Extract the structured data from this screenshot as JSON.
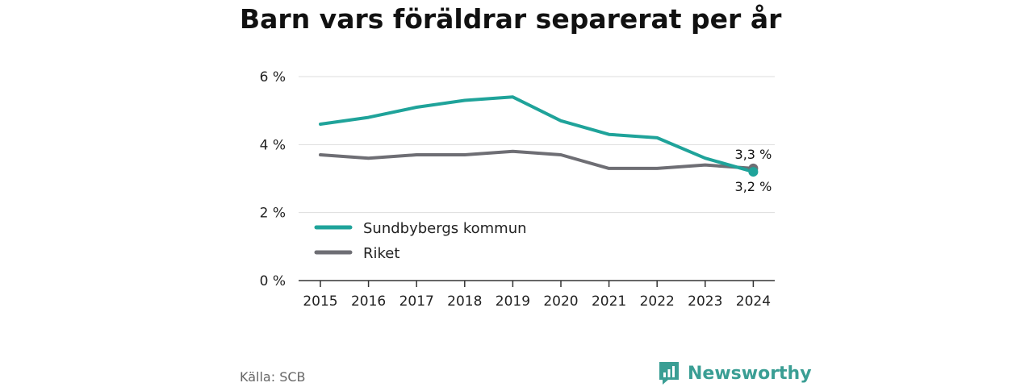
{
  "chart_data": {
    "type": "line",
    "title": "Barn vars föräldrar separerat per år",
    "x": [
      "2015",
      "2016",
      "2017",
      "2018",
      "2019",
      "2020",
      "2021",
      "2022",
      "2023",
      "2024"
    ],
    "ylim": [
      0,
      6
    ],
    "yticks": [
      {
        "value": 0,
        "label": "0 %"
      },
      {
        "value": 2,
        "label": "2 %"
      },
      {
        "value": 4,
        "label": "4 %"
      },
      {
        "value": 6,
        "label": "6 %"
      }
    ],
    "grid": true,
    "legend_position": "bottom-left",
    "series": [
      {
        "name": "Sundbybergs kommun",
        "color": "#1fa39a",
        "values": [
          4.6,
          4.8,
          5.1,
          5.3,
          5.4,
          4.7,
          4.3,
          4.2,
          3.6,
          3.2
        ],
        "end_label": "3,2 %"
      },
      {
        "name": "Riket",
        "color": "#6e6e74",
        "values": [
          3.7,
          3.6,
          3.7,
          3.7,
          3.8,
          3.7,
          3.3,
          3.3,
          3.4,
          3.3
        ],
        "end_label": "3,3 %"
      }
    ]
  },
  "footer": {
    "source": "Källa: SCB",
    "brand_name": "Newsworthy",
    "brand_icon": "newsworthy-logo-icon",
    "brand_color": "#3a9e94"
  }
}
